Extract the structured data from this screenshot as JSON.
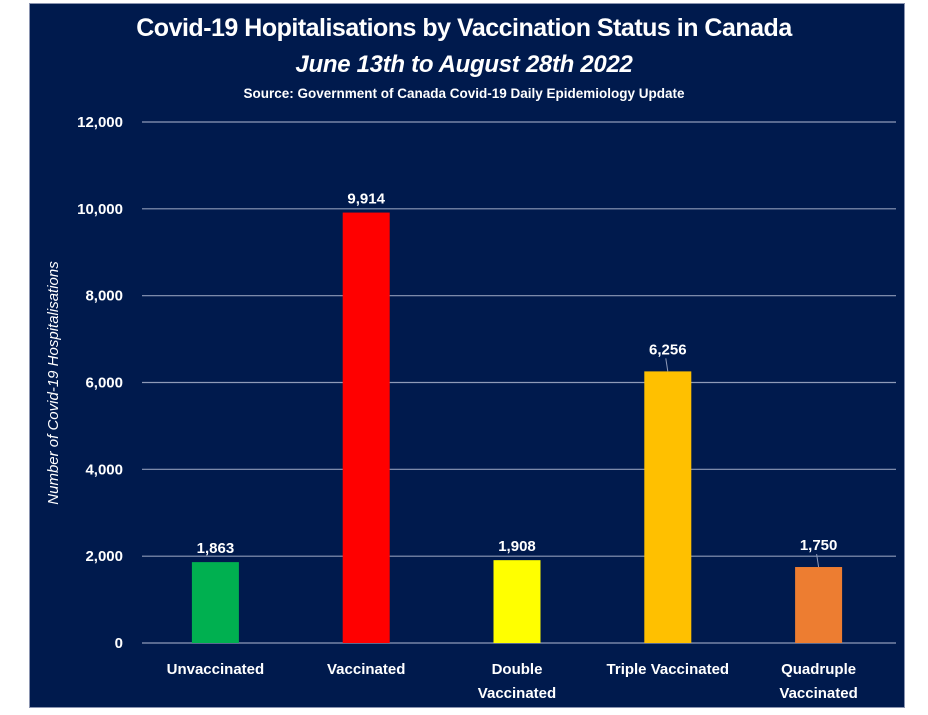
{
  "chart_data": {
    "type": "bar",
    "title": "Covid-19 Hopitalisations by Vaccination Status in Canada",
    "subtitle": "June 13th to August 28th 2022",
    "source": "Source: Government of Canada  Covid-19 Daily Epidemiology Update",
    "xlabel": "",
    "ylabel": "Number of Covid-19 Hospitalisations",
    "ylim": [
      0,
      12000
    ],
    "yticks": [
      0,
      2000,
      4000,
      6000,
      8000,
      10000,
      12000
    ],
    "ytick_labels": [
      "0",
      "2,000",
      "4,000",
      "6,000",
      "8,000",
      "10,000",
      "12,000"
    ],
    "grid": true,
    "categories": [
      [
        "Unvaccinated"
      ],
      [
        "Vaccinated"
      ],
      [
        "Double",
        "Vaccinated"
      ],
      [
        "Triple Vaccinated"
      ],
      [
        "Quadruple",
        "Vaccinated"
      ]
    ],
    "values": [
      1863,
      9914,
      1908,
      6256,
      1750
    ],
    "data_labels": [
      "1,863",
      "9,914",
      "1,908",
      "6,256",
      "1,750"
    ],
    "colors": [
      "#00B050",
      "#FF0000",
      "#FFFF00",
      "#FFC000",
      "#ED7D31"
    ],
    "background": "#001A4D"
  }
}
